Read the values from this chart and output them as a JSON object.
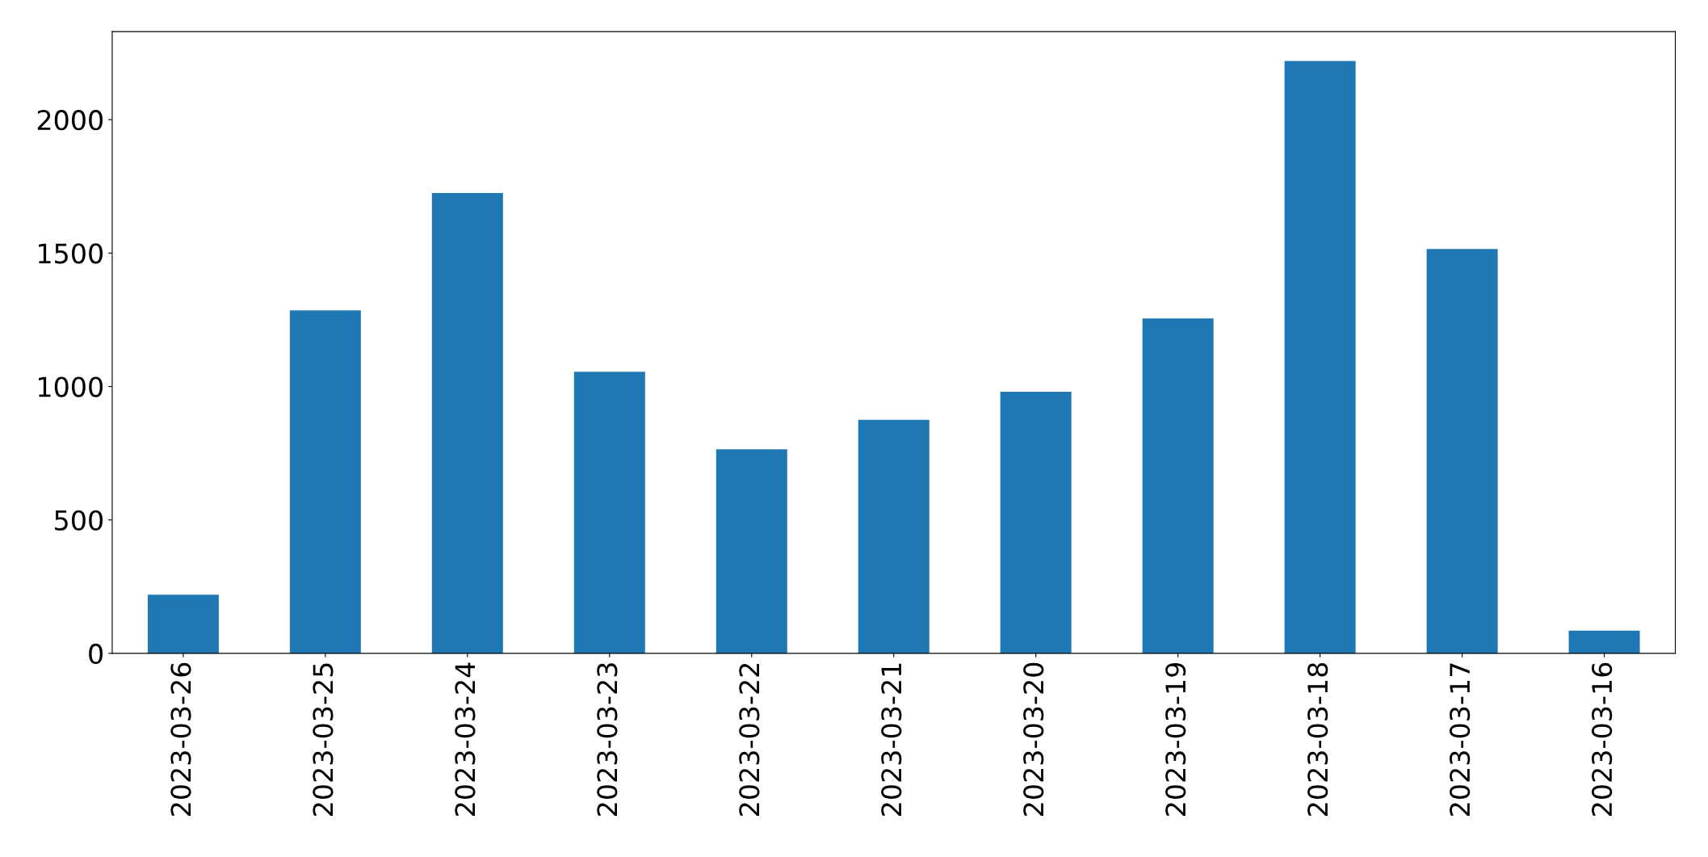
{
  "chart_data": {
    "type": "bar",
    "categories": [
      "2023-03-26",
      "2023-03-25",
      "2023-03-24",
      "2023-03-23",
      "2023-03-22",
      "2023-03-21",
      "2023-03-20",
      "2023-03-19",
      "2023-03-18",
      "2023-03-17",
      "2023-03-16"
    ],
    "values": [
      220,
      1285,
      1725,
      1055,
      765,
      875,
      980,
      1255,
      2220,
      1515,
      85
    ],
    "color": "#1f77b4",
    "ylim": [
      0,
      2330
    ],
    "yticks": [
      0,
      500,
      1000,
      1500,
      2000
    ],
    "grid": false
  }
}
